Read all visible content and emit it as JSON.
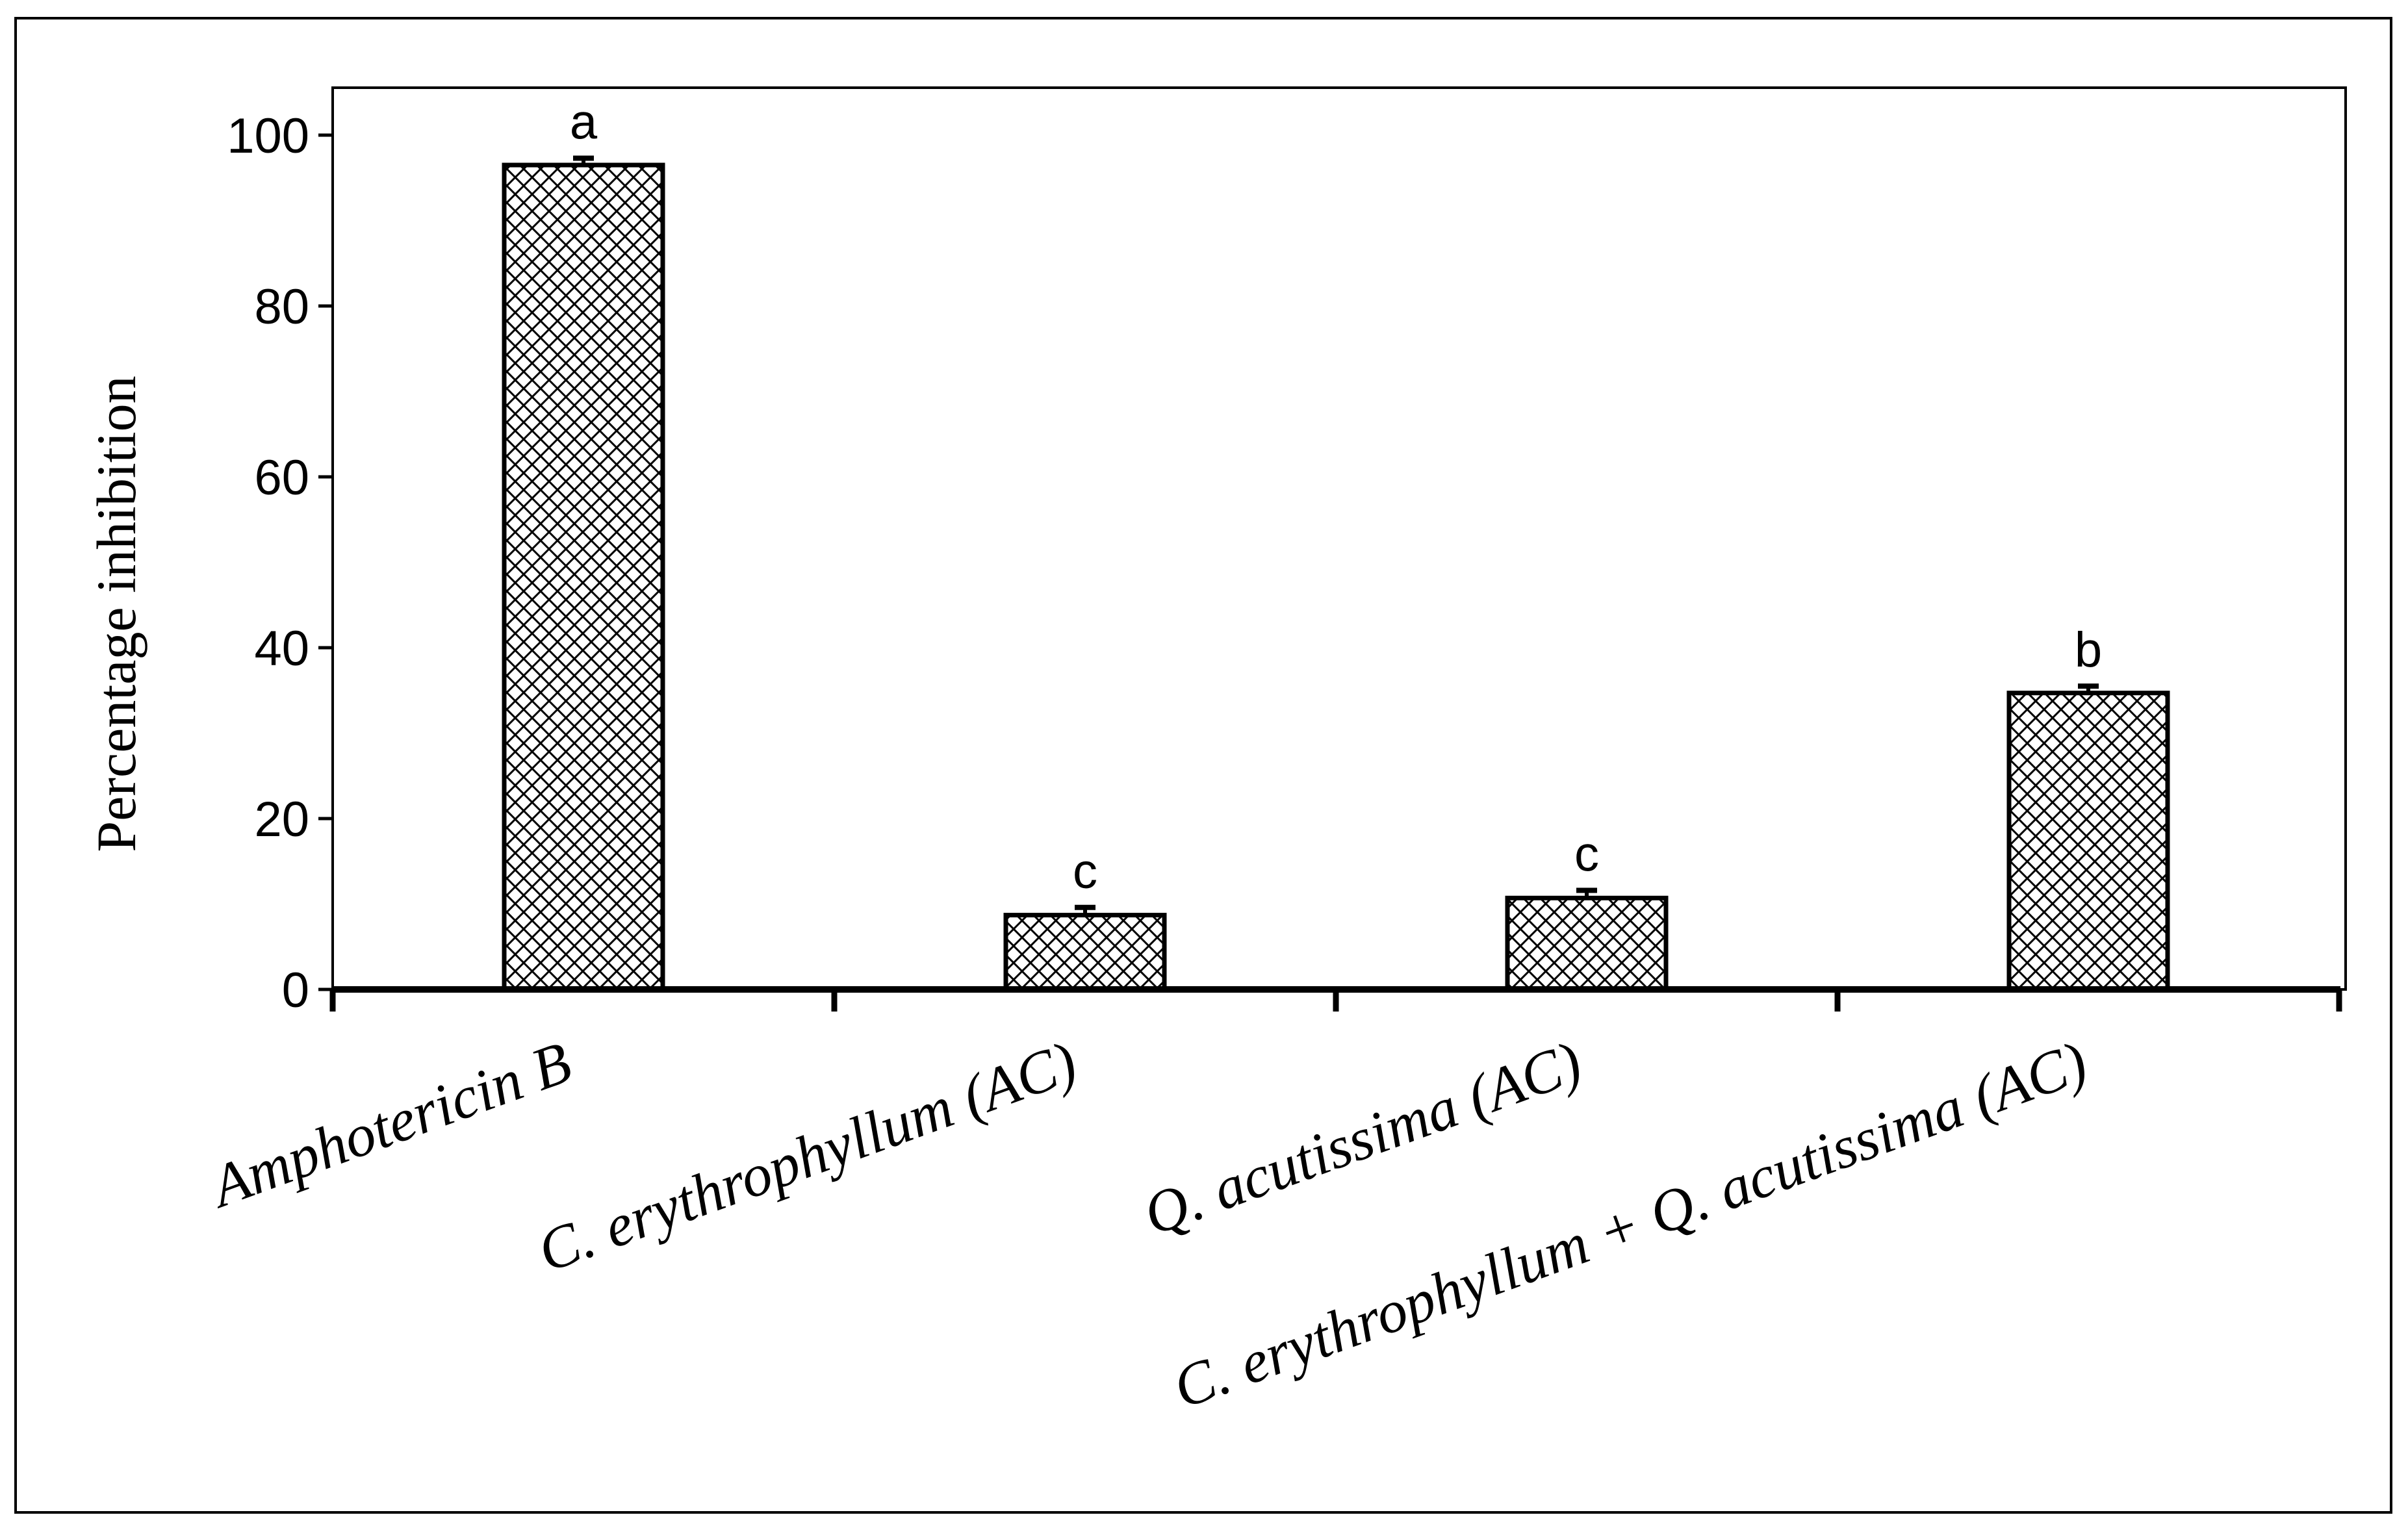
{
  "chart_data": {
    "type": "bar",
    "title": "",
    "xlabel": "",
    "ylabel": "Percentage inhibition",
    "ylim": [
      0,
      100
    ],
    "yticks": [
      0,
      20,
      40,
      60,
      80,
      100
    ],
    "grid": false,
    "legend": "none",
    "categories": [
      "Amphotericin B",
      "C. erythrophyllum (AC)",
      "Q. acutissima (AC)",
      "C. erythrophyllum + Q. acutissima (AC)"
    ],
    "values": [
      96.5,
      8.7,
      10.7,
      34.7
    ],
    "errors": [
      0.8,
      0.9,
      0.9,
      0.8
    ],
    "significance_labels": [
      "a",
      "c",
      "c",
      "b"
    ],
    "bar_fill": "crosshatch",
    "colors": {
      "bar_edge": "#000000",
      "hatch": "#000000",
      "background": "#ffffff"
    }
  }
}
